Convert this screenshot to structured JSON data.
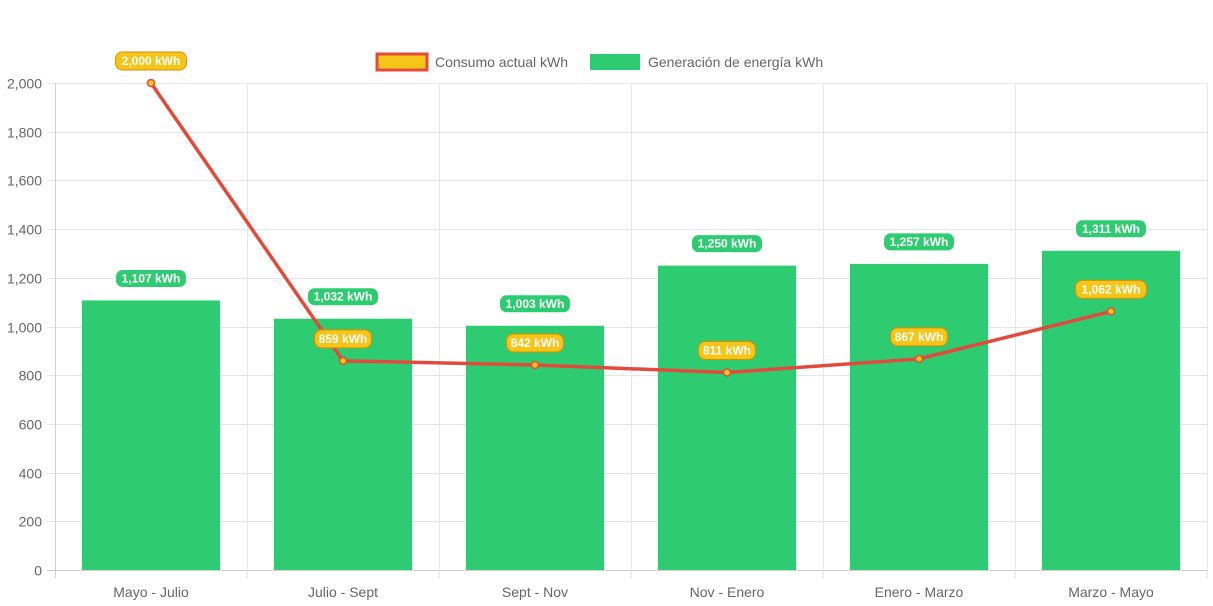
{
  "chart_data": {
    "type": "bar",
    "categories": [
      "Mayo - Julio",
      "Julio - Sept",
      "Sept - Nov",
      "Nov - Enero",
      "Enero - Marzo",
      "Marzo - Mayo"
    ],
    "series": [
      {
        "name": "Consumo actual kWh",
        "type": "line",
        "values": [
          2000,
          859,
          842,
          811,
          867,
          1062
        ],
        "labels": [
          "2,000 kWh",
          "859 kWh",
          "842 kWh",
          "811 kWh",
          "867 kWh",
          "1,062 kWh"
        ],
        "color": "#e24b3b",
        "label_color": "#f5c518"
      },
      {
        "name": "Generación de energía kWh",
        "type": "bar",
        "values": [
          1107,
          1032,
          1003,
          1250,
          1257,
          1311
        ],
        "labels": [
          "1,107 kWh",
          "1,032 kWh",
          "1,003 kWh",
          "1,250 kWh",
          "1,257 kWh",
          "1,311 kWh"
        ],
        "color": "#2ecc71"
      }
    ],
    "y_ticks": [
      "0",
      "200",
      "400",
      "600",
      "800",
      "1,000",
      "1,200",
      "1,400",
      "1,600",
      "1,800",
      "2,000"
    ],
    "ylim": [
      0,
      2000
    ],
    "grid": true,
    "legend": "top-center",
    "title": "",
    "xlabel": "",
    "ylabel": ""
  }
}
